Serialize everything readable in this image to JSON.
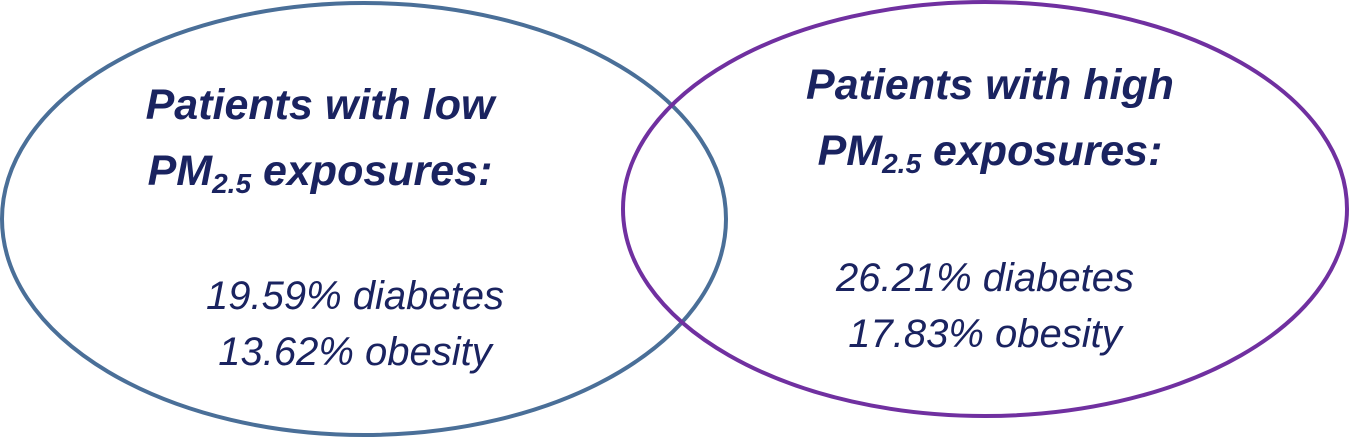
{
  "colors": {
    "left_circle": "#4a6f98",
    "right_circle": "#7030a0",
    "text": "#1a2360"
  },
  "left_set": {
    "line1": "Patients with low",
    "pm_prefix": "PM",
    "pm_subscript": "2.5",
    "pm_suffix": " exposures:",
    "diabetes": "19.59% diabetes",
    "obesity": "13.62% obesity"
  },
  "right_set": {
    "line1": "Patients with high",
    "pm_prefix": "PM",
    "pm_subscript": "2.5",
    "pm_suffix": " exposures:",
    "diabetes": "26.21% diabetes",
    "obesity": "17.83% obesity"
  }
}
